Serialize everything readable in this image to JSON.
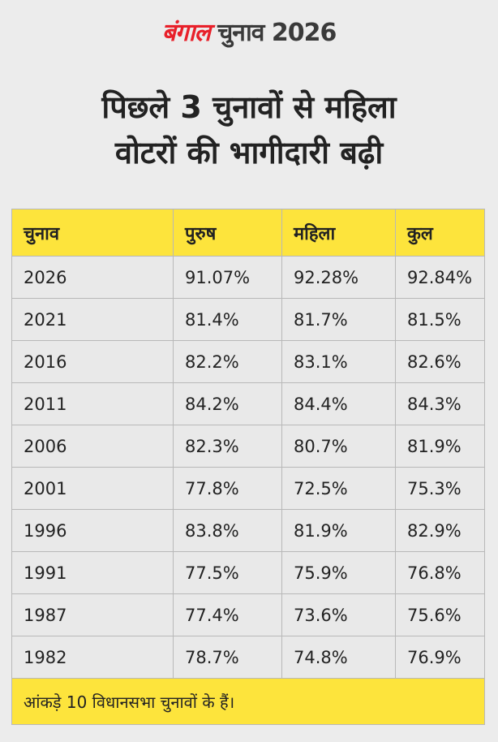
{
  "brand": {
    "logo_text": "बंगाल",
    "suffix": "चुनाव 2026",
    "accent": "#e8202a"
  },
  "title": [
    "पिछले 3 चुनावों से महिला",
    "वोटरों की भागीदारी बढ़ी"
  ],
  "table": {
    "headers": [
      "चुनाव",
      "पुरुष",
      "महिला",
      "कुल"
    ],
    "rows": [
      [
        "2026",
        "91.07%",
        "92.28%",
        "92.84%"
      ],
      [
        "2021",
        "81.4%",
        "81.7%",
        "81.5%"
      ],
      [
        "2016",
        "82.2%",
        "83.1%",
        "82.6%"
      ],
      [
        "2011",
        "84.2%",
        "84.4%",
        "84.3%"
      ],
      [
        "2006",
        "82.3%",
        "80.7%",
        "81.9%"
      ],
      [
        "2001",
        "77.8%",
        "72.5%",
        "75.3%"
      ],
      [
        "1996",
        "83.8%",
        "81.9%",
        "82.9%"
      ],
      [
        "1991",
        "77.5%",
        "75.9%",
        "76.8%"
      ],
      [
        "1987",
        "77.4%",
        "73.6%",
        "75.6%"
      ],
      [
        "1982",
        "78.7%",
        "74.8%",
        "76.9%"
      ]
    ],
    "footer": "आंकड़े 10 विधानसभा चुनावों के हैं।"
  }
}
